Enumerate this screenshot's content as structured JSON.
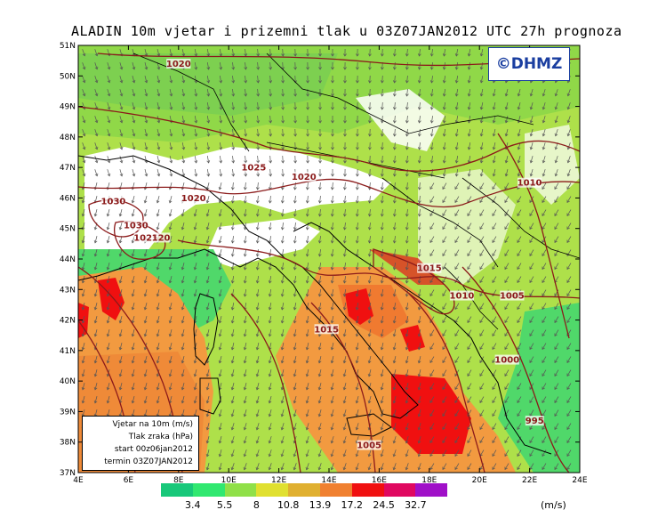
{
  "title": "ALADIN 10m vjetar i prizemni tlak u 03Z07JAN2012 UTC 27h prognoza",
  "logo": "©DHMZ",
  "info_box": {
    "line1": "Vjetar na 10m (m/s)",
    "line2": "Tlak zraka (hPa)",
    "line3": "start 00z06jan2012",
    "line4": "termin 03Z07JAN2012"
  },
  "lat_labels": [
    "51N",
    "50N",
    "49N",
    "48N",
    "47N",
    "46N",
    "45N",
    "44N",
    "43N",
    "42N",
    "41N",
    "40N",
    "39N",
    "38N",
    "37N"
  ],
  "lon_labels": [
    "4E",
    "6E",
    "8E",
    "10E",
    "12E",
    "14E",
    "16E",
    "18E",
    "20E",
    "22E",
    "24E"
  ],
  "isobar_labels": [
    {
      "text": "1020",
      "lon": 8.0,
      "lat": 50.3
    },
    {
      "text": "1025",
      "lon": 11.0,
      "lat": 46.9
    },
    {
      "text": "1020",
      "lon": 13.0,
      "lat": 46.6
    },
    {
      "text": "1030",
      "lon": 5.4,
      "lat": 45.8
    },
    {
      "text": "1020",
      "lon": 8.6,
      "lat": 45.9
    },
    {
      "text": "1030",
      "lon": 6.3,
      "lat": 45.0
    },
    {
      "text": "1025",
      "lon": 6.7,
      "lat": 44.6
    },
    {
      "text": "120",
      "lon": 7.3,
      "lat": 44.6
    },
    {
      "text": "1015",
      "lon": 18.0,
      "lat": 43.6
    },
    {
      "text": "1010",
      "lon": 19.3,
      "lat": 42.7
    },
    {
      "text": "1005",
      "lon": 21.3,
      "lat": 42.7
    },
    {
      "text": "1010",
      "lon": 22.0,
      "lat": 46.4
    },
    {
      "text": "1015",
      "lon": 13.9,
      "lat": 41.6
    },
    {
      "text": "1000",
      "lon": 21.1,
      "lat": 40.6
    },
    {
      "text": "995",
      "lon": 22.2,
      "lat": 38.6
    },
    {
      "text": "1005",
      "lon": 15.6,
      "lat": 37.8
    }
  ],
  "colorbar": {
    "units": "(m/s)",
    "colors": [
      "#18c87a",
      "#30e870",
      "#90e048",
      "#e0e030",
      "#e0b030",
      "#f08030",
      "#f01010",
      "#e00860",
      "#a010c8"
    ],
    "labels": [
      "3.4",
      "5.5",
      "8",
      "10.8",
      "13.9",
      "17.2",
      "24.5",
      "32.7"
    ]
  }
}
